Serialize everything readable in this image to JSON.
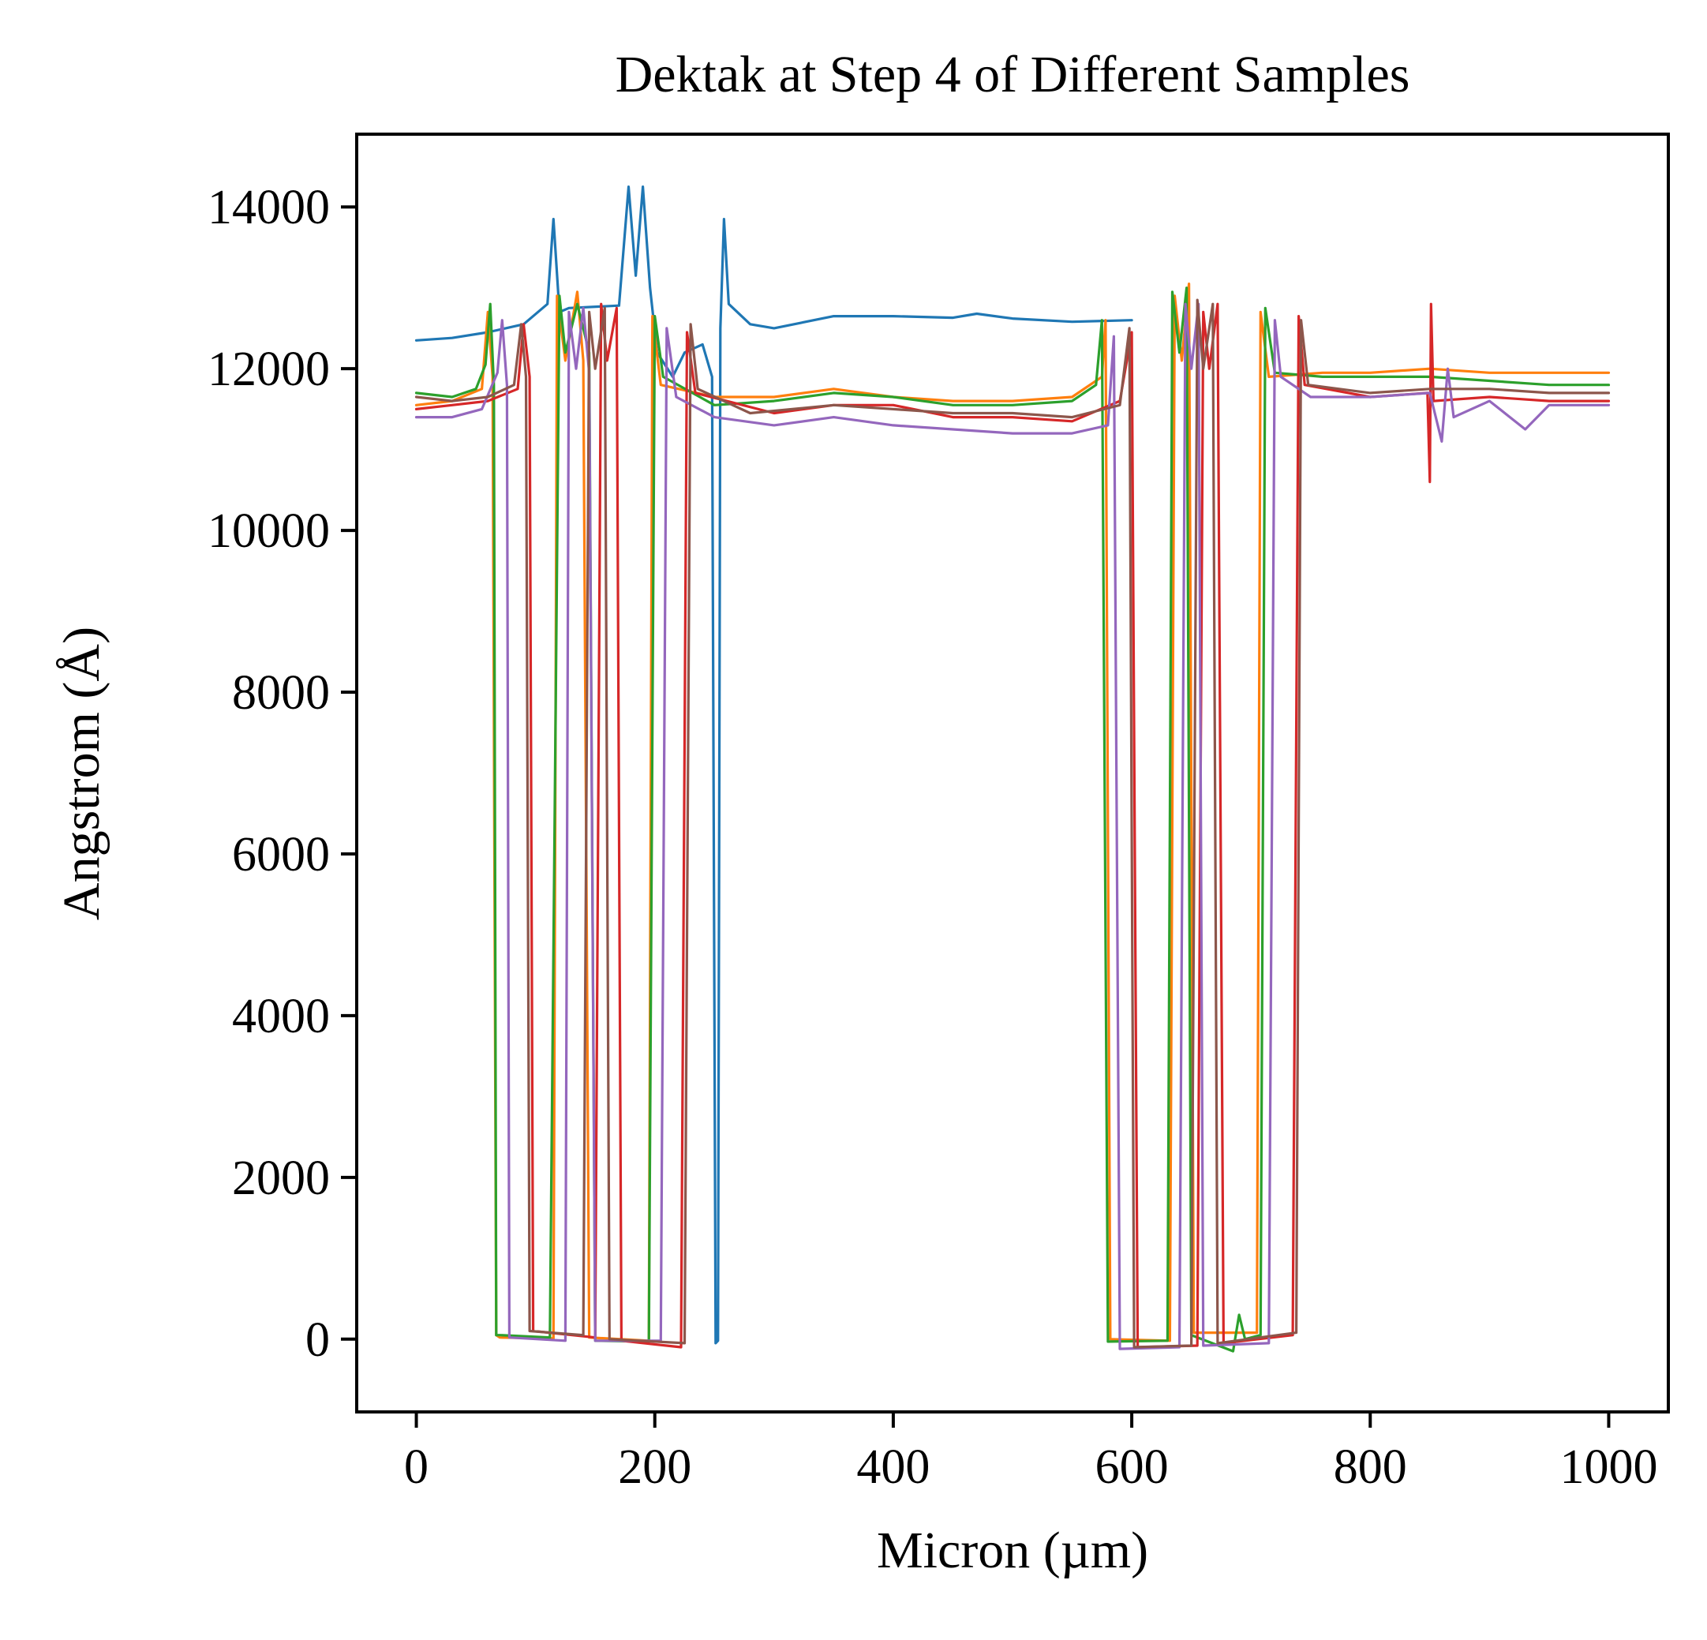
{
  "chart_data": {
    "type": "line",
    "title": "Dektak at Step 4 of Different Samples",
    "xlabel": "Micron (µm)",
    "ylabel": "Angstrom (Å)",
    "xlim": [
      -50,
      1050
    ],
    "ylim": [
      -900,
      14900
    ],
    "xticks": [
      0,
      200,
      400,
      600,
      800,
      1000
    ],
    "yticks": [
      0,
      2000,
      4000,
      6000,
      8000,
      10000,
      12000,
      14000
    ],
    "grid": false,
    "legend": "none",
    "series": [
      {
        "color": "#1f77b4",
        "points": [
          [
            0,
            12350
          ],
          [
            30,
            12380
          ],
          [
            60,
            12450
          ],
          [
            90,
            12550
          ],
          [
            110,
            12800
          ],
          [
            115,
            13850
          ],
          [
            120,
            12700
          ],
          [
            128,
            12750
          ],
          [
            170,
            12780
          ],
          [
            178,
            14250
          ],
          [
            184,
            13150
          ],
          [
            190,
            14250
          ],
          [
            196,
            13000
          ],
          [
            202,
            12200
          ],
          [
            215,
            11900
          ],
          [
            225,
            12200
          ],
          [
            240,
            12300
          ],
          [
            248,
            11900
          ],
          [
            251,
            -50
          ],
          [
            253,
            -20
          ],
          [
            255,
            12500
          ],
          [
            258,
            13850
          ],
          [
            262,
            12800
          ],
          [
            280,
            12550
          ],
          [
            300,
            12500
          ],
          [
            350,
            12650
          ],
          [
            400,
            12650
          ],
          [
            450,
            12630
          ],
          [
            470,
            12680
          ],
          [
            500,
            12620
          ],
          [
            550,
            12580
          ],
          [
            600,
            12600
          ]
        ]
      },
      {
        "color": "#ff7f0e",
        "points": [
          [
            0,
            11550
          ],
          [
            30,
            11600
          ],
          [
            55,
            11750
          ],
          [
            60,
            12700
          ],
          [
            64,
            11900
          ],
          [
            67,
            50
          ],
          [
            70,
            20
          ],
          [
            115,
            10
          ],
          [
            118,
            12900
          ],
          [
            125,
            12100
          ],
          [
            135,
            12950
          ],
          [
            140,
            12100
          ],
          [
            145,
            20
          ],
          [
            195,
            -20
          ],
          [
            198,
            12650
          ],
          [
            205,
            11800
          ],
          [
            250,
            11650
          ],
          [
            300,
            11650
          ],
          [
            350,
            11750
          ],
          [
            400,
            11650
          ],
          [
            450,
            11600
          ],
          [
            500,
            11600
          ],
          [
            550,
            11650
          ],
          [
            575,
            11900
          ],
          [
            578,
            12600
          ],
          [
            582,
            0
          ],
          [
            632,
            -20
          ],
          [
            636,
            12900
          ],
          [
            642,
            12100
          ],
          [
            648,
            13050
          ],
          [
            652,
            80
          ],
          [
            705,
            80
          ],
          [
            708,
            12700
          ],
          [
            715,
            11900
          ],
          [
            760,
            11950
          ],
          [
            800,
            11950
          ],
          [
            850,
            12000
          ],
          [
            900,
            11950
          ],
          [
            950,
            11950
          ],
          [
            1000,
            11950
          ]
        ]
      },
      {
        "color": "#2ca02c",
        "points": [
          [
            0,
            11700
          ],
          [
            30,
            11650
          ],
          [
            50,
            11750
          ],
          [
            58,
            12050
          ],
          [
            62,
            12800
          ],
          [
            65,
            11800
          ],
          [
            67,
            50
          ],
          [
            70,
            50
          ],
          [
            112,
            20
          ],
          [
            120,
            12900
          ],
          [
            125,
            12200
          ],
          [
            135,
            12800
          ],
          [
            145,
            12200
          ],
          [
            150,
            -20
          ],
          [
            195,
            -30
          ],
          [
            200,
            12650
          ],
          [
            207,
            11900
          ],
          [
            250,
            11550
          ],
          [
            300,
            11600
          ],
          [
            350,
            11700
          ],
          [
            400,
            11650
          ],
          [
            450,
            11550
          ],
          [
            500,
            11550
          ],
          [
            550,
            11600
          ],
          [
            570,
            11800
          ],
          [
            575,
            12600
          ],
          [
            580,
            -30
          ],
          [
            630,
            -20
          ],
          [
            634,
            12950
          ],
          [
            640,
            12200
          ],
          [
            646,
            13000
          ],
          [
            650,
            50
          ],
          [
            685,
            -150
          ],
          [
            690,
            300
          ],
          [
            695,
            0
          ],
          [
            708,
            50
          ],
          [
            712,
            12750
          ],
          [
            720,
            11950
          ],
          [
            760,
            11900
          ],
          [
            800,
            11900
          ],
          [
            850,
            11900
          ],
          [
            900,
            11850
          ],
          [
            950,
            11800
          ],
          [
            1000,
            11800
          ]
        ]
      },
      {
        "color": "#d62728",
        "points": [
          [
            0,
            11500
          ],
          [
            30,
            11550
          ],
          [
            60,
            11600
          ],
          [
            85,
            11750
          ],
          [
            90,
            12550
          ],
          [
            95,
            11900
          ],
          [
            98,
            100
          ],
          [
            150,
            20
          ],
          [
            155,
            12800
          ],
          [
            160,
            12100
          ],
          [
            168,
            12750
          ],
          [
            172,
            -20
          ],
          [
            222,
            -100
          ],
          [
            227,
            12450
          ],
          [
            234,
            11700
          ],
          [
            300,
            11450
          ],
          [
            350,
            11550
          ],
          [
            400,
            11550
          ],
          [
            450,
            11400
          ],
          [
            500,
            11400
          ],
          [
            550,
            11350
          ],
          [
            590,
            11600
          ],
          [
            600,
            12450
          ],
          [
            605,
            -100
          ],
          [
            655,
            -80
          ],
          [
            660,
            12700
          ],
          [
            665,
            12000
          ],
          [
            672,
            12800
          ],
          [
            677,
            -50
          ],
          [
            735,
            50
          ],
          [
            740,
            12650
          ],
          [
            745,
            11800
          ],
          [
            800,
            11650
          ],
          [
            848,
            11700
          ],
          [
            850,
            10600
          ],
          [
            851,
            12800
          ],
          [
            853,
            11600
          ],
          [
            900,
            11650
          ],
          [
            950,
            11600
          ],
          [
            1000,
            11600
          ]
        ]
      },
      {
        "color": "#9467bd",
        "points": [
          [
            0,
            11400
          ],
          [
            30,
            11400
          ],
          [
            55,
            11500
          ],
          [
            68,
            11950
          ],
          [
            72,
            12600
          ],
          [
            76,
            11800
          ],
          [
            78,
            20
          ],
          [
            125,
            -20
          ],
          [
            128,
            12700
          ],
          [
            134,
            12000
          ],
          [
            140,
            12750
          ],
          [
            145,
            11950
          ],
          [
            150,
            -20
          ],
          [
            205,
            -20
          ],
          [
            210,
            12500
          ],
          [
            218,
            11650
          ],
          [
            250,
            11400
          ],
          [
            300,
            11300
          ],
          [
            350,
            11400
          ],
          [
            400,
            11300
          ],
          [
            450,
            11250
          ],
          [
            500,
            11200
          ],
          [
            550,
            11200
          ],
          [
            580,
            11300
          ],
          [
            585,
            12400
          ],
          [
            590,
            -120
          ],
          [
            640,
            -100
          ],
          [
            645,
            12800
          ],
          [
            650,
            12000
          ],
          [
            656,
            12800
          ],
          [
            660,
            -80
          ],
          [
            715,
            -50
          ],
          [
            720,
            12600
          ],
          [
            725,
            11900
          ],
          [
            750,
            11650
          ],
          [
            800,
            11650
          ],
          [
            850,
            11700
          ],
          [
            860,
            11100
          ],
          [
            865,
            12000
          ],
          [
            870,
            11400
          ],
          [
            900,
            11600
          ],
          [
            930,
            11250
          ],
          [
            950,
            11550
          ],
          [
            1000,
            11550
          ]
        ]
      },
      {
        "color": "#8c564b",
        "points": [
          [
            0,
            11650
          ],
          [
            30,
            11600
          ],
          [
            60,
            11650
          ],
          [
            82,
            11800
          ],
          [
            88,
            12550
          ],
          [
            92,
            11900
          ],
          [
            95,
            100
          ],
          [
            140,
            50
          ],
          [
            145,
            12700
          ],
          [
            150,
            12000
          ],
          [
            158,
            12750
          ],
          [
            162,
            0
          ],
          [
            225,
            -50
          ],
          [
            230,
            12550
          ],
          [
            236,
            11750
          ],
          [
            280,
            11450
          ],
          [
            350,
            11550
          ],
          [
            400,
            11500
          ],
          [
            450,
            11450
          ],
          [
            500,
            11450
          ],
          [
            550,
            11400
          ],
          [
            590,
            11550
          ],
          [
            598,
            12500
          ],
          [
            602,
            -100
          ],
          [
            650,
            -80
          ],
          [
            655,
            12850
          ],
          [
            660,
            12000
          ],
          [
            668,
            12800
          ],
          [
            672,
            -50
          ],
          [
            738,
            80
          ],
          [
            742,
            12600
          ],
          [
            748,
            11800
          ],
          [
            800,
            11700
          ],
          [
            850,
            11750
          ],
          [
            900,
            11750
          ],
          [
            950,
            11700
          ],
          [
            1000,
            11700
          ]
        ]
      }
    ]
  }
}
